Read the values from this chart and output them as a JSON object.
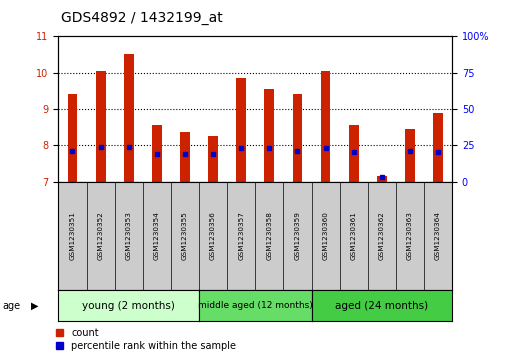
{
  "title": "GDS4892 / 1432199_at",
  "samples": [
    "GSM1230351",
    "GSM1230352",
    "GSM1230353",
    "GSM1230354",
    "GSM1230355",
    "GSM1230356",
    "GSM1230357",
    "GSM1230358",
    "GSM1230359",
    "GSM1230360",
    "GSM1230361",
    "GSM1230362",
    "GSM1230363",
    "GSM1230364"
  ],
  "count_values": [
    9.4,
    10.05,
    10.5,
    8.55,
    8.35,
    8.25,
    9.85,
    9.55,
    9.4,
    10.05,
    8.55,
    7.15,
    8.45,
    8.9
  ],
  "percentile_values": [
    21,
    24,
    24,
    19,
    19,
    19,
    23,
    23,
    21,
    23,
    20,
    3,
    21,
    20
  ],
  "ylim_left": [
    7,
    11
  ],
  "ylim_right": [
    0,
    100
  ],
  "yticks_left": [
    7,
    8,
    9,
    10,
    11
  ],
  "yticks_right": [
    0,
    25,
    50,
    75,
    100
  ],
  "bar_bottom": 7,
  "bar_width": 0.35,
  "red_color": "#cc2200",
  "blue_color": "#0000cc",
  "sample_box_color": "#cccccc",
  "group_colors": [
    "#ccffcc",
    "#66dd66",
    "#44cc44"
  ],
  "group_labels": [
    "young (2 months)",
    "middle aged (12 months)",
    "aged (24 months)"
  ],
  "group_starts": [
    0,
    5,
    9
  ],
  "group_ends": [
    5,
    9,
    14
  ],
  "title_fontsize": 10,
  "tick_fontsize": 7,
  "legend_count": "count",
  "legend_percentile": "percentile rank within the sample",
  "dotted_gridlines": [
    8,
    9,
    10
  ]
}
